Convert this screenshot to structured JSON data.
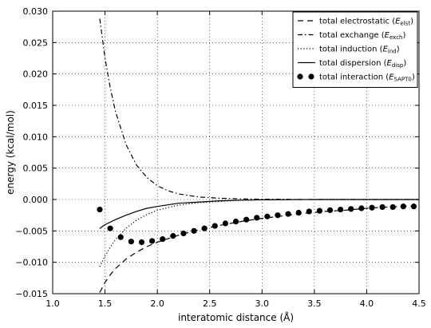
{
  "chart_data": {
    "type": "line",
    "xlabel": "interatomic distance (Å)",
    "ylabel": "energy (kcal/mol)",
    "xlim": [
      1.0,
      4.5
    ],
    "ylim": [
      -0.015,
      0.03
    ],
    "x_ticks": [
      "1.0",
      "1.5",
      "2.0",
      "2.5",
      "3.0",
      "3.5",
      "4.0",
      "4.5"
    ],
    "y_ticks": [
      "−0.015",
      "−0.010",
      "−0.005",
      "0.000",
      "0.005",
      "0.010",
      "0.015",
      "0.020",
      "0.025",
      "0.030"
    ],
    "grid": true,
    "legend_position": "top-right",
    "series": [
      {
        "name": "total electrostatic",
        "symbol": "E",
        "subscript": "elst",
        "style": "dashed",
        "x": [
          1.45,
          1.5,
          1.55,
          1.6,
          1.7,
          1.8,
          1.9,
          2.0,
          2.2,
          2.4,
          2.6,
          2.8,
          3.0,
          3.2,
          3.4,
          3.6,
          3.8,
          4.0,
          4.2,
          4.5
        ],
        "y": [
          -0.0148,
          -0.0132,
          -0.012,
          -0.011,
          -0.0095,
          -0.0084,
          -0.0075,
          -0.0068,
          -0.0057,
          -0.0048,
          -0.0041,
          -0.0035,
          -0.003,
          -0.0026,
          -0.0022,
          -0.0019,
          -0.0017,
          -0.0014,
          -0.0012,
          -0.001
        ]
      },
      {
        "name": "total exchange",
        "symbol": "E",
        "subscript": "exch",
        "style": "dashdot",
        "x": [
          1.45,
          1.5,
          1.55,
          1.6,
          1.7,
          1.8,
          1.9,
          2.0,
          2.1,
          2.2,
          2.4,
          2.6,
          2.8,
          3.0,
          3.5,
          4.0,
          4.5
        ],
        "y": [
          0.0288,
          0.0225,
          0.0178,
          0.014,
          0.0088,
          0.0055,
          0.0035,
          0.0022,
          0.0014,
          0.0009,
          0.0004,
          0.0002,
          0.0001,
          5e-05,
          0.0,
          0.0,
          0.0
        ]
      },
      {
        "name": "total induction",
        "symbol": "E",
        "subscript": "ind",
        "style": "dotted",
        "x": [
          1.45,
          1.5,
          1.55,
          1.6,
          1.7,
          1.8,
          1.9,
          2.0,
          2.2,
          2.4,
          2.6,
          2.8,
          3.0,
          3.5,
          4.0,
          4.5
        ],
        "y": [
          -0.0107,
          -0.009,
          -0.0076,
          -0.0064,
          -0.0046,
          -0.0033,
          -0.0024,
          -0.0017,
          -0.0009,
          -0.0005,
          -0.0003,
          -0.0001,
          -5e-05,
          0.0,
          0.0,
          0.0
        ]
      },
      {
        "name": "total dispersion",
        "symbol": "E",
        "subscript": "disp",
        "style": "solid",
        "x": [
          1.45,
          1.5,
          1.6,
          1.7,
          1.8,
          1.9,
          2.0,
          2.2,
          2.4,
          2.6,
          2.8,
          3.0,
          3.5,
          4.0,
          4.5
        ],
        "y": [
          -0.0046,
          -0.004,
          -0.0032,
          -0.0025,
          -0.0019,
          -0.0014,
          -0.0011,
          -0.0006,
          -0.0004,
          -0.0002,
          -0.0001,
          -5e-05,
          0.0,
          0.0,
          0.0
        ]
      },
      {
        "name": "total interaction",
        "symbol": "E",
        "subscript": "SAPT0",
        "style": "markers",
        "x": [
          1.45,
          1.55,
          1.65,
          1.75,
          1.85,
          1.95,
          2.05,
          2.15,
          2.25,
          2.35,
          2.45,
          2.55,
          2.65,
          2.75,
          2.85,
          2.95,
          3.05,
          3.15,
          3.25,
          3.35,
          3.45,
          3.55,
          3.65,
          3.75,
          3.85,
          3.95,
          4.05,
          4.15,
          4.25,
          4.35,
          4.45
        ],
        "y": [
          -0.0016,
          -0.0046,
          -0.006,
          -0.0067,
          -0.0068,
          -0.0066,
          -0.0063,
          -0.0058,
          -0.0054,
          -0.005,
          -0.0046,
          -0.0042,
          -0.0038,
          -0.0035,
          -0.0032,
          -0.0029,
          -0.0027,
          -0.0025,
          -0.0023,
          -0.0021,
          -0.0019,
          -0.0018,
          -0.0017,
          -0.0016,
          -0.0015,
          -0.0014,
          -0.0013,
          -0.0012,
          -0.0012,
          -0.0011,
          -0.0011
        ]
      }
    ]
  }
}
